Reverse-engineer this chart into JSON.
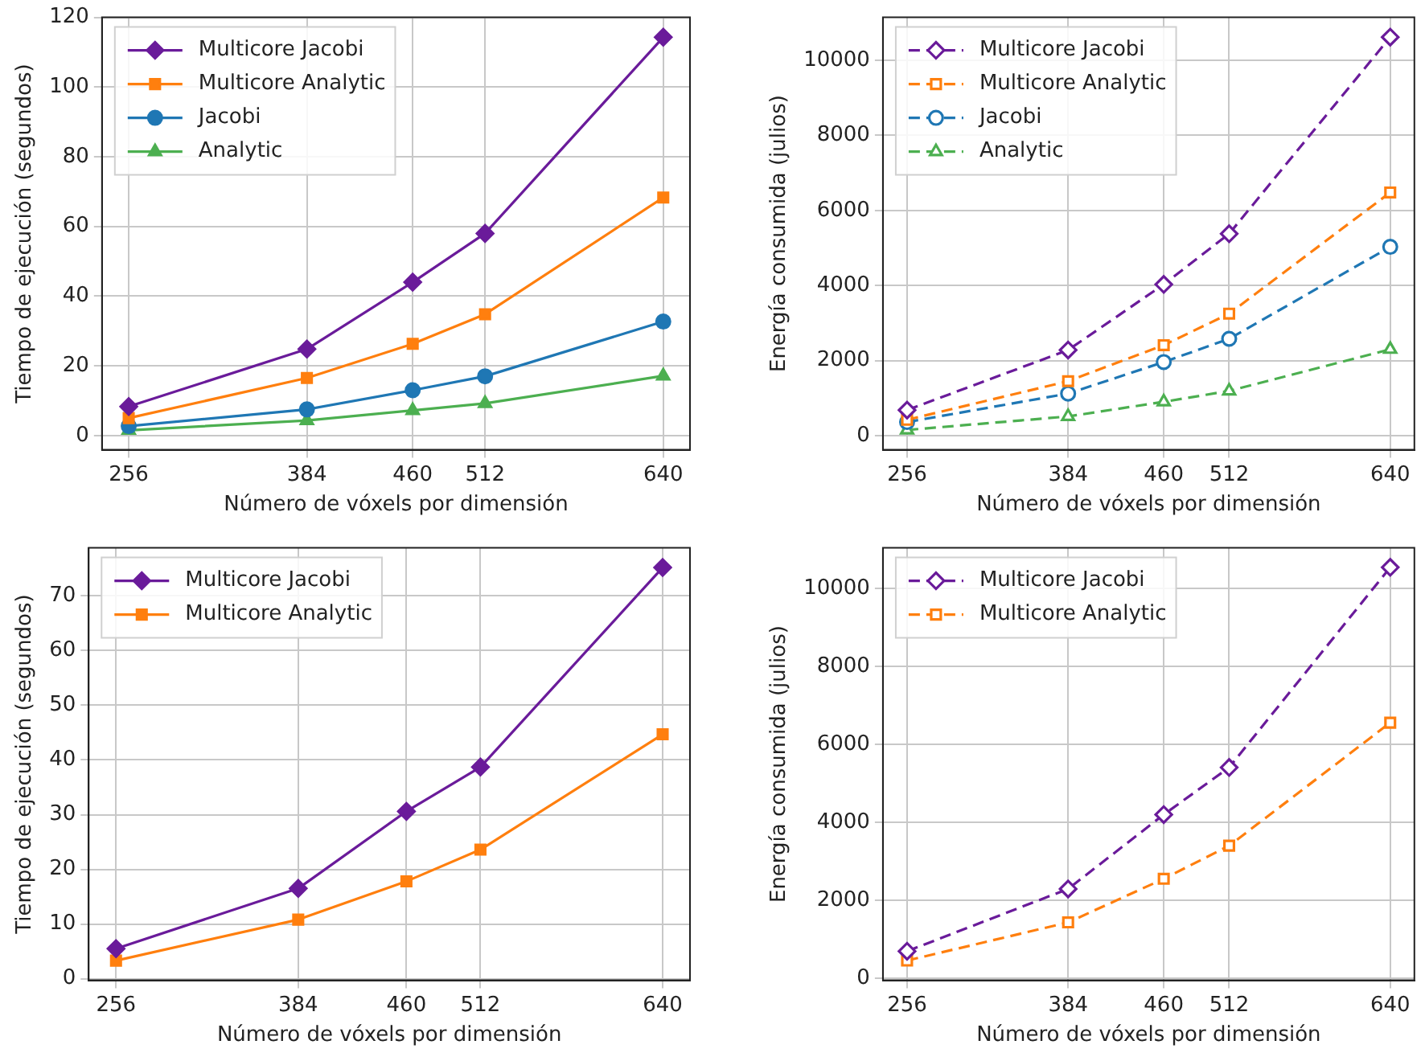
{
  "chart_data": [
    {
      "type": "line",
      "xlabel": "Número de vóxels por dimensión",
      "ylabel": "Tiempo de ejecución (segundos)",
      "x": [
        256,
        384,
        460,
        512,
        640
      ],
      "xlim": [
        236.8,
        659.2
      ],
      "xticks": [
        256,
        384,
        460,
        512,
        640
      ],
      "ylim": [
        -4.1,
        120
      ],
      "yticks": [
        0,
        20,
        40,
        60,
        80,
        100,
        120
      ],
      "grid": true,
      "legend": "top left",
      "line_style": "solid",
      "series": [
        {
          "name": "Multicore Jacobi",
          "color": "#6a1b9a",
          "marker": "diamond",
          "values": [
            8.3,
            24.8,
            44,
            58,
            114.3
          ]
        },
        {
          "name": "Multicore Analytic",
          "color": "#ff7f0e",
          "marker": "square",
          "values": [
            5,
            16.5,
            26.3,
            34.8,
            68.3
          ]
        },
        {
          "name": "Jacobi",
          "color": "#1f77b4",
          "marker": "circle",
          "values": [
            2.7,
            7.5,
            13,
            17,
            32.7
          ]
        },
        {
          "name": "Analytic",
          "color": "#4caf50",
          "marker": "triangle",
          "values": [
            1.5,
            4.3,
            7.2,
            9.2,
            17.1
          ]
        }
      ]
    },
    {
      "type": "line",
      "xlabel": "Número de vóxels por dimensión",
      "ylabel": "Energía consumida (julios)",
      "x": [
        256,
        384,
        460,
        512,
        640
      ],
      "xlim": [
        236.8,
        659.2
      ],
      "xticks": [
        256,
        384,
        460,
        512,
        640
      ],
      "ylim": [
        -379,
        11147
      ],
      "yticks": [
        0,
        2000,
        4000,
        6000,
        8000,
        10000
      ],
      "grid": true,
      "legend": "top left",
      "line_style": "dashed",
      "series": [
        {
          "name": "Multicore Jacobi",
          "color": "#6a1b9a",
          "marker": "diamond",
          "values": [
            680,
            2280,
            4030,
            5380,
            10620
          ]
        },
        {
          "name": "Multicore Analytic",
          "color": "#ff7f0e",
          "marker": "square",
          "values": [
            420,
            1450,
            2410,
            3250,
            6480
          ]
        },
        {
          "name": "Jacobi",
          "color": "#1f77b4",
          "marker": "circle",
          "values": [
            360,
            1120,
            1960,
            2580,
            5030
          ]
        },
        {
          "name": "Analytic",
          "color": "#4caf50",
          "marker": "triangle",
          "values": [
            150,
            510,
            900,
            1190,
            2300
          ]
        }
      ]
    },
    {
      "type": "line",
      "xlabel": "Número de vóxels por dimensión",
      "ylabel": "Tiempo de ejecución (segundos)",
      "x": [
        256,
        384,
        460,
        512,
        640
      ],
      "xlim": [
        236.8,
        659.2
      ],
      "xticks": [
        256,
        384,
        460,
        512,
        640
      ],
      "ylim": [
        -0.3,
        78.8
      ],
      "yticks": [
        0,
        10,
        20,
        30,
        40,
        50,
        60,
        70
      ],
      "grid": true,
      "legend": "top left",
      "line_style": "solid",
      "series": [
        {
          "name": "Multicore Jacobi",
          "color": "#6a1b9a",
          "marker": "diamond",
          "values": [
            5.5,
            16.5,
            30.6,
            38.7,
            75.2
          ]
        },
        {
          "name": "Multicore Analytic",
          "color": "#ff7f0e",
          "marker": "square",
          "values": [
            3.3,
            10.8,
            17.8,
            23.6,
            44.7
          ]
        }
      ]
    },
    {
      "type": "line",
      "xlabel": "Número de vóxels por dimensión",
      "ylabel": "Energía consumida (julios)",
      "x": [
        256,
        384,
        460,
        512,
        640
      ],
      "xlim": [
        236.8,
        659.2
      ],
      "xticks": [
        256,
        384,
        460,
        512,
        640
      ],
      "ylim": [
        -57,
        11050
      ],
      "yticks": [
        0,
        2000,
        4000,
        6000,
        8000,
        10000
      ],
      "grid": true,
      "legend": "top left",
      "line_style": "dashed",
      "series": [
        {
          "name": "Multicore Jacobi",
          "color": "#6a1b9a",
          "marker": "diamond",
          "values": [
            690,
            2290,
            4200,
            5410,
            10550
          ]
        },
        {
          "name": "Multicore Analytic",
          "color": "#ff7f0e",
          "marker": "square",
          "values": [
            450,
            1430,
            2550,
            3400,
            6560
          ]
        }
      ]
    }
  ]
}
